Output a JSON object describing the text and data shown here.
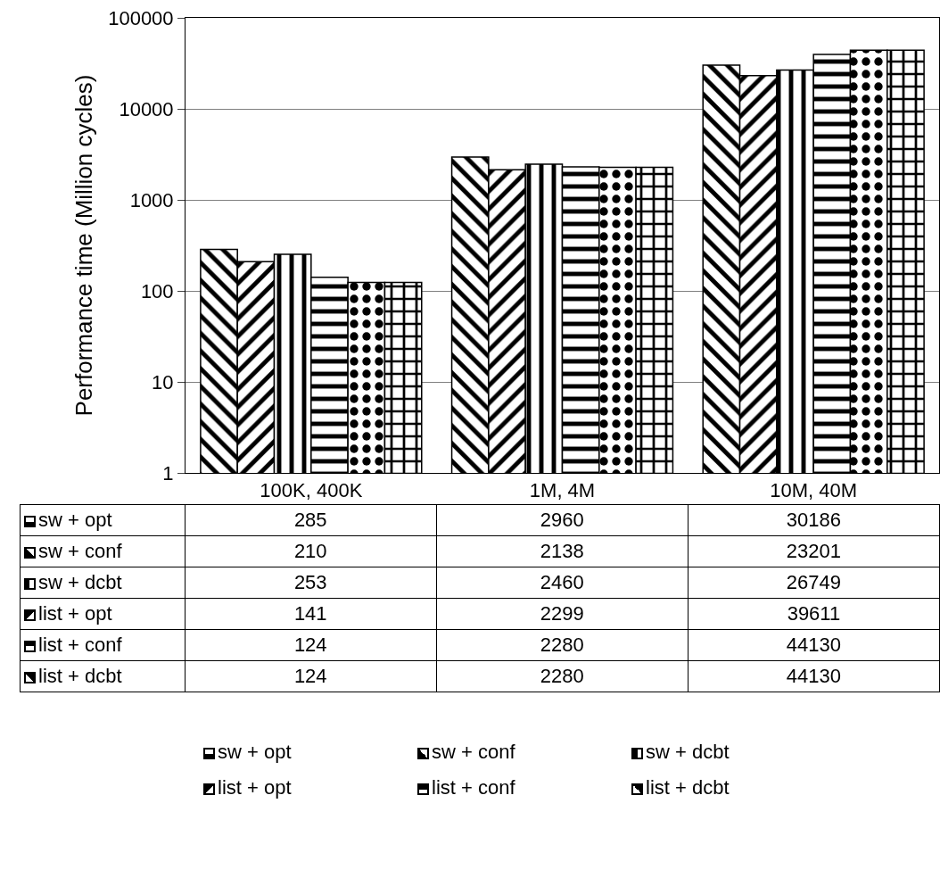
{
  "chart_data": {
    "type": "bar",
    "ylabel": "Performance time (Million cycles)",
    "categories": [
      "100K, 400K",
      "1M, 4M",
      "10M, 40M"
    ],
    "series": [
      {
        "name": "sw + opt",
        "color": "#000000",
        "values": [
          285,
          2960,
          30186
        ]
      },
      {
        "name": "sw + conf",
        "color": "#000000",
        "values": [
          210,
          2138,
          23201
        ]
      },
      {
        "name": "sw + dcbt",
        "color": "#000000",
        "values": [
          253,
          2460,
          26749
        ]
      },
      {
        "name": "list + opt",
        "color": "#000000",
        "values": [
          141,
          2299,
          39611
        ]
      },
      {
        "name": "list + conf",
        "color": "#000000",
        "values": [
          124,
          2280,
          44130
        ]
      },
      {
        "name": "list + dcbt",
        "color": "#000000",
        "values": [
          124,
          2280,
          44130
        ]
      }
    ],
    "log": true,
    "ylim": [
      1,
      100000
    ],
    "yticks": [
      1,
      10,
      100,
      1000,
      10000,
      100000
    ],
    "grid": "y",
    "legend": "bottom",
    "data_labels": true
  }
}
